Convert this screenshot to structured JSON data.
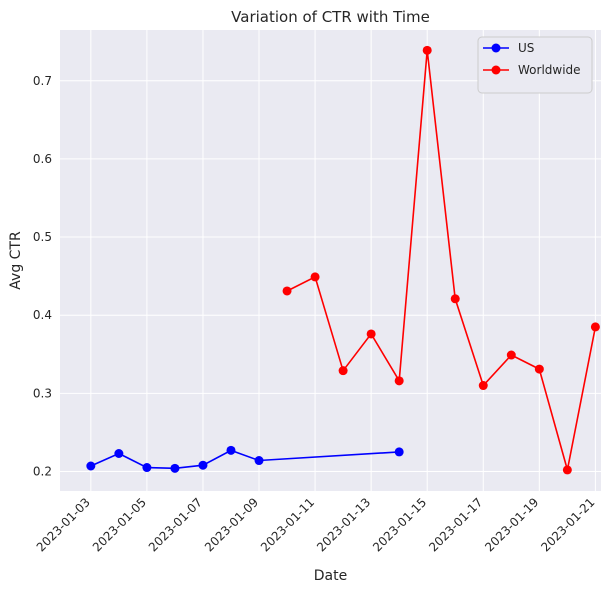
{
  "chart_data": {
    "type": "line",
    "title": "Variation of CTR with Time",
    "xlabel": "Date",
    "ylabel": "Avg CTR",
    "x_ticks": [
      "2023-01-03",
      "2023-01-05",
      "2023-01-07",
      "2023-01-09",
      "2023-01-11",
      "2023-01-13",
      "2023-01-15",
      "2023-01-17",
      "2023-01-19",
      "2023-01-21"
    ],
    "y_ticks": [
      0.2,
      0.3,
      0.4,
      0.5,
      0.6,
      0.7
    ],
    "xlim": [
      "2023-01-02",
      "2023-01-21"
    ],
    "ylim": [
      0.175,
      0.765
    ],
    "grid": true,
    "legend_position": "top-right",
    "series": [
      {
        "name": "US",
        "color": "#0000ff",
        "points": [
          [
            "2023-01-03",
            0.207
          ],
          [
            "2023-01-04",
            0.223
          ],
          [
            "2023-01-05",
            0.205
          ],
          [
            "2023-01-06",
            0.204
          ],
          [
            "2023-01-07",
            0.208
          ],
          [
            "2023-01-08",
            0.227
          ],
          [
            "2023-01-09",
            0.214
          ],
          [
            "2023-01-14",
            0.225
          ]
        ]
      },
      {
        "name": "Worldwide",
        "color": "#ff0000",
        "points": [
          [
            "2023-01-10",
            0.431
          ],
          [
            "2023-01-11",
            0.449
          ],
          [
            "2023-01-12",
            0.329
          ],
          [
            "2023-01-13",
            0.376
          ],
          [
            "2023-01-14",
            0.316
          ],
          [
            "2023-01-15",
            0.739
          ],
          [
            "2023-01-16",
            0.421
          ],
          [
            "2023-01-17",
            0.31
          ],
          [
            "2023-01-18",
            0.349
          ],
          [
            "2023-01-19",
            0.331
          ],
          [
            "2023-01-20",
            0.202
          ],
          [
            "2023-01-21",
            0.385
          ]
        ]
      }
    ]
  }
}
